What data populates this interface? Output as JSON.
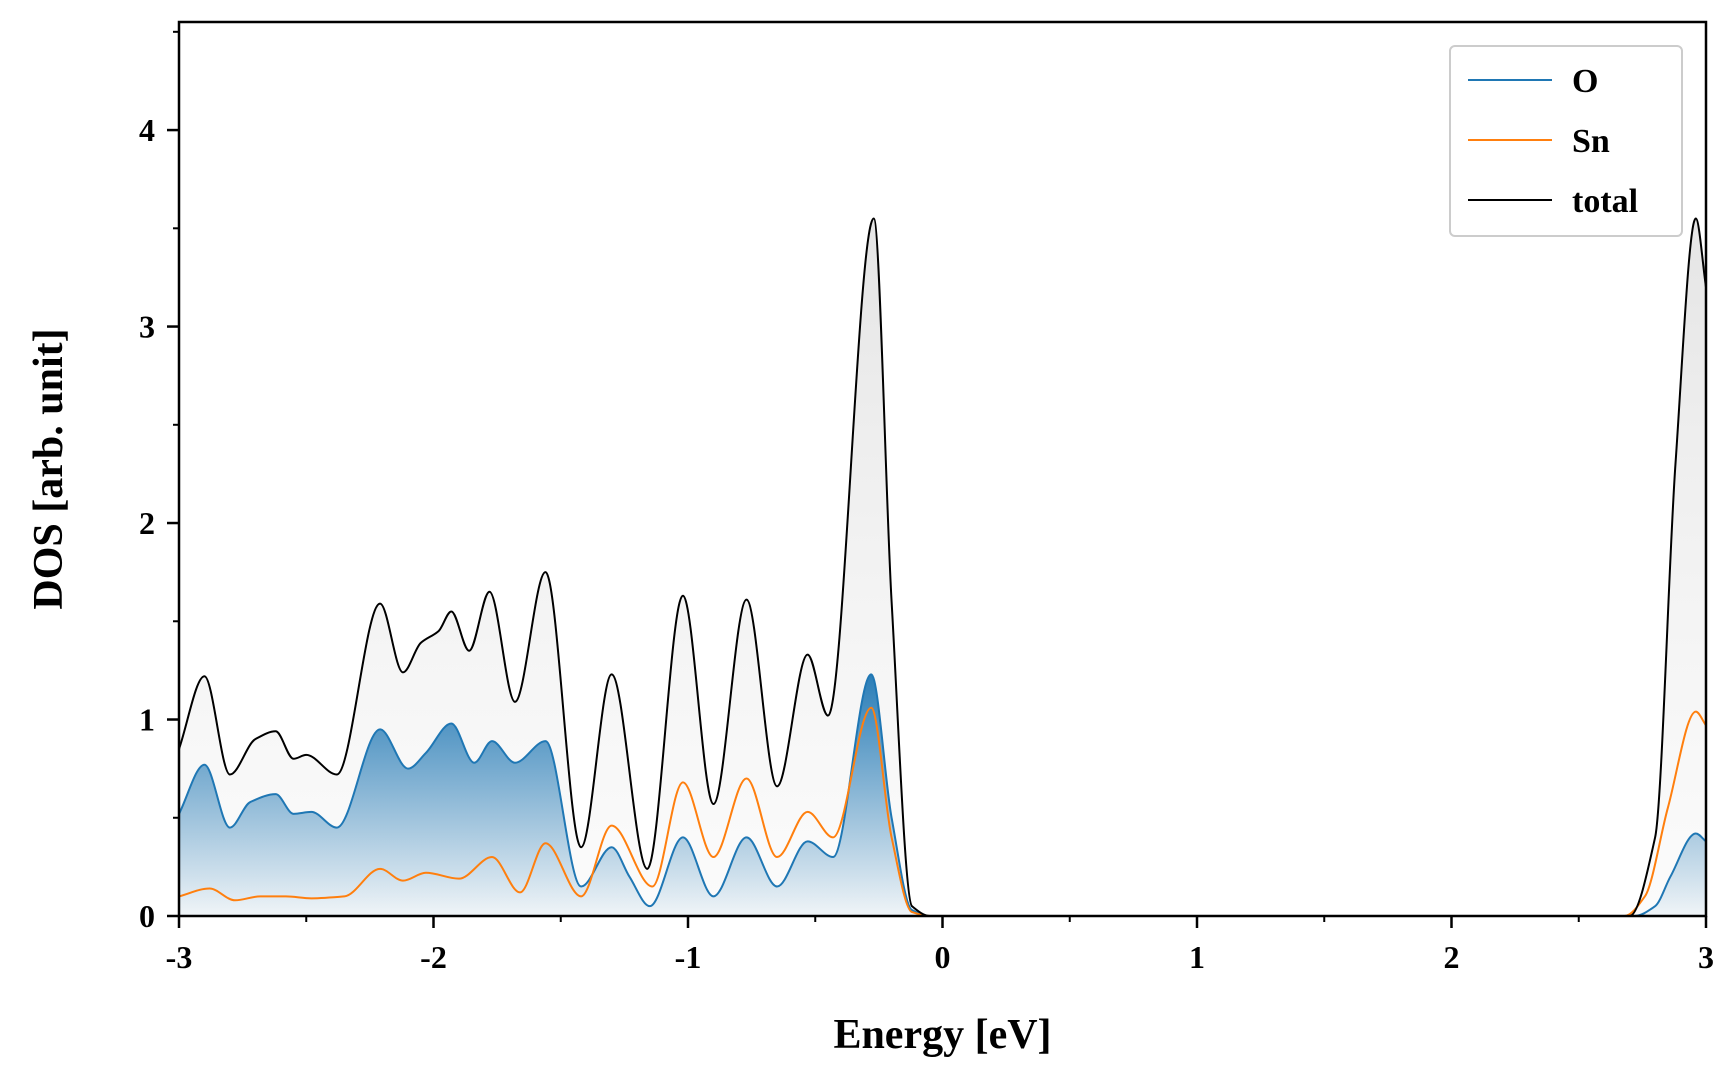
{
  "chart_data": {
    "type": "line",
    "title": "",
    "xlabel": "Energy [eV]",
    "ylabel": "DOS [arb. unit]",
    "xlim": [
      -3,
      3
    ],
    "ylim": [
      0,
      4.55
    ],
    "x_ticks": [
      -3,
      -2,
      -1,
      0,
      1,
      2,
      3
    ],
    "x_tick_labels": [
      "-3",
      "-2",
      "-1",
      "0",
      "1",
      "2",
      "3"
    ],
    "y_ticks": [
      0,
      1,
      2,
      3,
      4
    ],
    "y_tick_labels": [
      "0",
      "1",
      "2",
      "3",
      "4"
    ],
    "x_minor_step": 0.5,
    "y_minor_step": 0.5,
    "grid": false,
    "legend_position": "top-right",
    "series": [
      {
        "name": "O",
        "color": "#1f77b4",
        "fill": "gradient",
        "x": [
          -3.0,
          -2.9,
          -2.8,
          -2.72,
          -2.62,
          -2.55,
          -2.48,
          -2.38,
          -2.21,
          -2.1,
          -2.03,
          -1.93,
          -1.84,
          -1.77,
          -1.68,
          -1.56,
          -1.42,
          -1.3,
          -1.23,
          -1.15,
          -1.02,
          -0.9,
          -0.77,
          -0.65,
          -0.53,
          -0.43,
          -0.28,
          -0.2,
          -0.12,
          -0.05,
          0.0,
          1.0,
          2.0,
          2.72,
          2.8,
          2.86,
          2.96,
          3.0
        ],
        "y": [
          0.52,
          0.77,
          0.45,
          0.58,
          0.62,
          0.52,
          0.53,
          0.45,
          0.95,
          0.75,
          0.83,
          0.98,
          0.78,
          0.89,
          0.78,
          0.89,
          0.15,
          0.35,
          0.2,
          0.05,
          0.4,
          0.1,
          0.4,
          0.15,
          0.38,
          0.3,
          1.23,
          0.5,
          0.03,
          0.0,
          0.0,
          0.0,
          0.0,
          0.0,
          0.05,
          0.2,
          0.42,
          0.38
        ]
      },
      {
        "name": "Sn",
        "color": "#ff7f0e",
        "fill": "none",
        "x": [
          -3.0,
          -2.88,
          -2.78,
          -2.68,
          -2.58,
          -2.48,
          -2.35,
          -2.21,
          -2.12,
          -2.03,
          -1.9,
          -1.77,
          -1.66,
          -1.56,
          -1.42,
          -1.3,
          -1.14,
          -1.02,
          -0.9,
          -0.77,
          -0.65,
          -0.53,
          -0.43,
          -0.28,
          -0.2,
          -0.12,
          -0.05,
          0.0,
          1.0,
          2.0,
          2.68,
          2.76,
          2.85,
          2.96,
          3.0
        ],
        "y": [
          0.1,
          0.14,
          0.08,
          0.1,
          0.1,
          0.09,
          0.1,
          0.24,
          0.18,
          0.22,
          0.19,
          0.3,
          0.12,
          0.37,
          0.1,
          0.46,
          0.15,
          0.68,
          0.3,
          0.7,
          0.3,
          0.53,
          0.4,
          1.06,
          0.4,
          0.02,
          0.0,
          0.0,
          0.0,
          0.0,
          0.0,
          0.1,
          0.55,
          1.04,
          0.97
        ]
      },
      {
        "name": "total",
        "color": "#000000",
        "fill": "light-gray",
        "x": [
          -3.0,
          -2.9,
          -2.8,
          -2.7,
          -2.62,
          -2.55,
          -2.5,
          -2.38,
          -2.21,
          -2.12,
          -2.05,
          -1.98,
          -1.93,
          -1.86,
          -1.78,
          -1.68,
          -1.56,
          -1.42,
          -1.3,
          -1.16,
          -1.02,
          -0.9,
          -0.77,
          -0.65,
          -0.53,
          -0.45,
          -0.27,
          -0.2,
          -0.12,
          -0.05,
          0.0,
          1.0,
          2.0,
          2.7,
          2.8,
          2.88,
          2.96,
          3.0
        ],
        "y": [
          0.85,
          1.22,
          0.72,
          0.9,
          0.94,
          0.8,
          0.82,
          0.72,
          1.59,
          1.24,
          1.39,
          1.45,
          1.55,
          1.35,
          1.65,
          1.09,
          1.75,
          0.35,
          1.23,
          0.24,
          1.63,
          0.57,
          1.61,
          0.66,
          1.33,
          1.02,
          3.55,
          1.6,
          0.05,
          0.0,
          0.0,
          0.0,
          0.0,
          0.0,
          0.4,
          2.3,
          3.55,
          3.2
        ]
      }
    ]
  }
}
